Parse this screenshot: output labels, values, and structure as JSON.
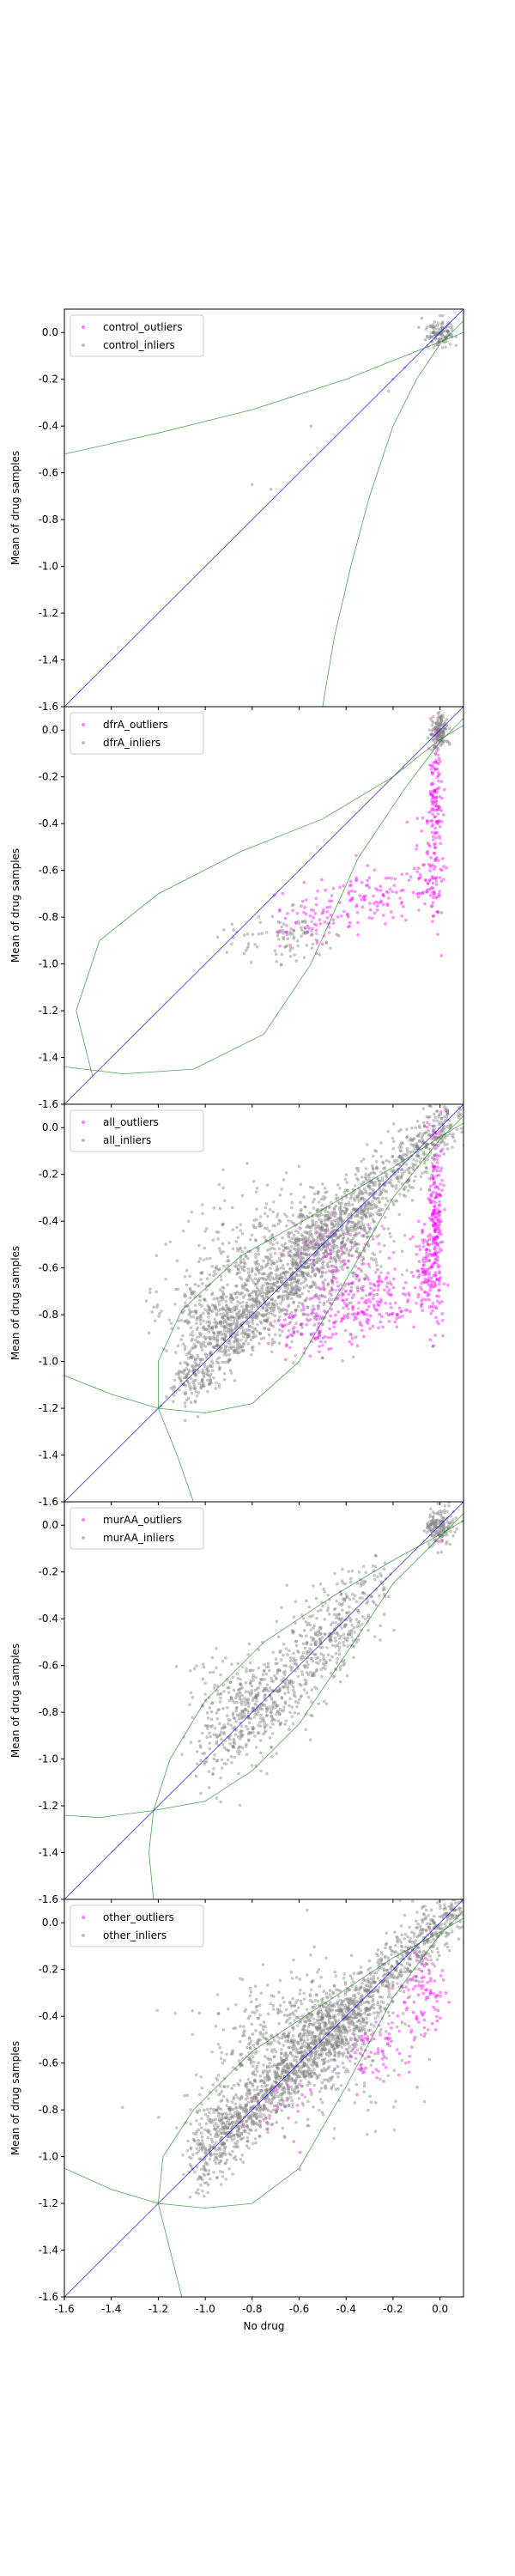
{
  "chart_data": [
    {
      "type": "scatter",
      "xlabel": "",
      "ylabel": "Mean of drug samples",
      "xlim": [
        -1.6,
        0.1
      ],
      "ylim": [
        -1.6,
        0.1
      ],
      "xticks": [
        "-1.6",
        "-1.4",
        "-1.2",
        "-1.0",
        "-0.8",
        "-0.6",
        "-0.4",
        "-0.2",
        "0.0"
      ],
      "yticks": [
        "-1.6",
        "-1.4",
        "-1.2",
        "-1.0",
        "-0.8",
        "-0.6",
        "-0.4",
        "-0.2",
        "0.0"
      ],
      "show_xticklabels": false,
      "legend": {
        "placement": "top-left",
        "entries": [
          "control_outliers",
          "control_inliers"
        ]
      },
      "series": [
        {
          "name": "control_outliers",
          "color": "#ff00ff",
          "points": []
        },
        {
          "name": "control_inliers",
          "color": "#808080",
          "clusters": [
            {
              "cx": 0.0,
              "cy": 0.0,
              "sx": 0.03,
              "sy": 0.03,
              "n": 120
            }
          ],
          "points": [
            [
              -0.55,
              -0.4
            ],
            [
              -0.2,
              -0.2
            ],
            [
              -0.22,
              -0.25
            ],
            [
              -0.15,
              -0.15
            ],
            [
              -0.8,
              -0.65
            ],
            [
              -0.72,
              -0.67
            ]
          ]
        }
      ],
      "reference_line": {
        "color": "#0000ff",
        "from": [
          -1.6,
          -1.6
        ],
        "to": [
          0.1,
          0.1
        ]
      },
      "boundary_curves": {
        "color": "#008000",
        "polylines": [
          [
            [
              -1.6,
              -0.52
            ],
            [
              -1.2,
              -0.43
            ],
            [
              -0.8,
              -0.33
            ],
            [
              -0.4,
              -0.2
            ],
            [
              -0.15,
              -0.1
            ],
            [
              0.0,
              -0.04
            ],
            [
              0.1,
              0.0
            ]
          ],
          [
            [
              -0.5,
              -1.6
            ],
            [
              -0.45,
              -1.3
            ],
            [
              -0.38,
              -1.0
            ],
            [
              -0.3,
              -0.7
            ],
            [
              -0.2,
              -0.4
            ],
            [
              -0.1,
              -0.2
            ],
            [
              0.0,
              -0.05
            ],
            [
              0.1,
              0.05
            ]
          ]
        ]
      }
    },
    {
      "type": "scatter",
      "xlabel": "",
      "ylabel": "Mean of drug samples",
      "xlim": [
        -1.6,
        0.1
      ],
      "ylim": [
        -1.6,
        0.1
      ],
      "xticks": [
        "-1.6",
        "-1.4",
        "-1.2",
        "-1.0",
        "-0.8",
        "-0.6",
        "-0.4",
        "-0.2",
        "0.0"
      ],
      "yticks": [
        "-1.6",
        "-1.4",
        "-1.2",
        "-1.0",
        "-0.8",
        "-0.6",
        "-0.4",
        "-0.2",
        "0.0"
      ],
      "show_xticklabels": false,
      "legend": {
        "placement": "top-left",
        "entries": [
          "dfrA_outliers",
          "dfrA_inliers"
        ]
      },
      "series": [
        {
          "name": "dfrA_outliers",
          "color": "#ff00ff",
          "clusters": [
            {
              "cx": -0.02,
              "cy": -0.35,
              "sx": 0.015,
              "sy": 0.2,
              "n": 160
            },
            {
              "cx": -0.06,
              "cy": -0.62,
              "sx": 0.03,
              "sy": 0.1,
              "n": 60
            },
            {
              "cx": -0.3,
              "cy": -0.72,
              "sx": 0.12,
              "sy": 0.06,
              "n": 110
            },
            {
              "cx": -0.55,
              "cy": -0.82,
              "sx": 0.08,
              "sy": 0.06,
              "n": 60
            }
          ]
        },
        {
          "name": "dfrA_inliers",
          "color": "#808080",
          "clusters": [
            {
              "cx": 0.0,
              "cy": 0.0,
              "sx": 0.02,
              "sy": 0.04,
              "n": 140
            },
            {
              "cx": -0.62,
              "cy": -0.88,
              "sx": 0.08,
              "sy": 0.05,
              "n": 80
            },
            {
              "cx": -0.85,
              "cy": -0.9,
              "sx": 0.06,
              "sy": 0.04,
              "n": 20
            }
          ]
        }
      ],
      "reference_line": {
        "color": "#0000ff",
        "from": [
          -1.6,
          -1.6
        ],
        "to": [
          0.1,
          0.1
        ]
      },
      "boundary_curves": {
        "color": "#008000",
        "polylines": [
          [
            [
              -1.48,
              -1.48
            ],
            [
              -1.55,
              -1.2
            ],
            [
              -1.45,
              -0.9
            ],
            [
              -1.2,
              -0.7
            ],
            [
              -0.85,
              -0.52
            ],
            [
              -0.5,
              -0.38
            ],
            [
              -0.2,
              -0.2
            ],
            [
              0.0,
              -0.04
            ],
            [
              0.1,
              0.02
            ]
          ],
          [
            [
              -1.6,
              -1.44
            ],
            [
              -1.35,
              -1.47
            ],
            [
              -1.05,
              -1.45
            ],
            [
              -0.75,
              -1.3
            ],
            [
              -0.55,
              -1.0
            ],
            [
              -0.35,
              -0.55
            ],
            [
              -0.15,
              -0.25
            ],
            [
              0.0,
              -0.05
            ],
            [
              0.1,
              0.05
            ]
          ]
        ]
      }
    },
    {
      "type": "scatter",
      "xlabel": "",
      "ylabel": "Mean of drug samples",
      "xlim": [
        -1.6,
        0.1
      ],
      "ylim": [
        -1.6,
        0.1
      ],
      "xticks": [
        "-1.6",
        "-1.4",
        "-1.2",
        "-1.0",
        "-0.8",
        "-0.6",
        "-0.4",
        "-0.2",
        "0.0"
      ],
      "yticks": [
        "-1.6",
        "-1.4",
        "-1.2",
        "-1.0",
        "-0.8",
        "-0.6",
        "-0.4",
        "-0.2",
        "0.0"
      ],
      "show_xticklabels": false,
      "legend": {
        "placement": "top-left",
        "entries": [
          "all_outliers",
          "all_inliers"
        ]
      },
      "series": [
        {
          "name": "all_outliers",
          "color": "#ff00ff",
          "clusters": [
            {
              "cx": -0.02,
              "cy": -0.4,
              "sx": 0.015,
              "sy": 0.2,
              "n": 220
            },
            {
              "cx": -0.06,
              "cy": -0.6,
              "sx": 0.03,
              "sy": 0.1,
              "n": 100
            },
            {
              "cx": -0.3,
              "cy": -0.75,
              "sx": 0.12,
              "sy": 0.07,
              "n": 200
            },
            {
              "cx": -0.55,
              "cy": -0.85,
              "sx": 0.09,
              "sy": 0.06,
              "n": 100
            },
            {
              "cx": -0.45,
              "cy": -0.55,
              "sx": 0.1,
              "sy": 0.08,
              "n": 80
            }
          ]
        },
        {
          "name": "all_inliers",
          "color": "#808080",
          "diagonal_band": {
            "from": -1.1,
            "to": 0.08,
            "spread": 0.07,
            "n": 1500
          },
          "clusters": [
            {
              "cx": -0.7,
              "cy": -0.6,
              "sx": 0.2,
              "sy": 0.15,
              "n": 600
            },
            {
              "cx": -0.95,
              "cy": -0.8,
              "sx": 0.1,
              "sy": 0.08,
              "n": 250
            },
            {
              "cx": -0.45,
              "cy": -0.45,
              "sx": 0.12,
              "sy": 0.1,
              "n": 300
            }
          ]
        }
      ],
      "reference_line": {
        "color": "#0000ff",
        "from": [
          -1.6,
          -1.6
        ],
        "to": [
          0.1,
          0.1
        ]
      },
      "boundary_curves": {
        "color": "#008000",
        "polylines": [
          [
            [
              -1.6,
              -1.06
            ],
            [
              -1.4,
              -1.14
            ],
            [
              -1.2,
              -1.2
            ],
            [
              -1.0,
              -1.22
            ],
            [
              -0.8,
              -1.18
            ],
            [
              -0.6,
              -1.0
            ],
            [
              -0.4,
              -0.65
            ],
            [
              -0.2,
              -0.3
            ],
            [
              0.0,
              -0.05
            ],
            [
              0.1,
              0.05
            ]
          ],
          [
            [
              -1.05,
              -1.6
            ],
            [
              -1.12,
              -1.4
            ],
            [
              -1.2,
              -1.2
            ],
            [
              -1.2,
              -1.0
            ],
            [
              -1.1,
              -0.78
            ],
            [
              -0.85,
              -0.55
            ],
            [
              -0.55,
              -0.38
            ],
            [
              -0.2,
              -0.17
            ],
            [
              0.0,
              -0.04
            ],
            [
              0.1,
              0.02
            ]
          ]
        ]
      }
    },
    {
      "type": "scatter",
      "xlabel": "",
      "ylabel": "Mean of drug samples",
      "xlim": [
        -1.6,
        0.1
      ],
      "ylim": [
        -1.6,
        0.1
      ],
      "xticks": [
        "-1.6",
        "-1.4",
        "-1.2",
        "-1.0",
        "-0.8",
        "-0.6",
        "-0.4",
        "-0.2",
        "0.0"
      ],
      "yticks": [
        "-1.6",
        "-1.4",
        "-1.2",
        "-1.0",
        "-0.8",
        "-0.6",
        "-0.4",
        "-0.2",
        "0.0"
      ],
      "show_xticklabels": false,
      "legend": {
        "placement": "top-left",
        "entries": [
          "murAA_outliers",
          "murAA_inliers"
        ]
      },
      "series": [
        {
          "name": "murAA_outliers",
          "color": "#ff00ff",
          "clusters": [
            {
              "cx": 0.0,
              "cy": -0.05,
              "sx": 0.01,
              "sy": 0.02,
              "n": 5
            }
          ]
        },
        {
          "name": "murAA_inliers",
          "color": "#808080",
          "diagonal_band": {
            "from": -1.0,
            "to": -0.25,
            "spread": 0.09,
            "n": 550
          },
          "clusters": [
            {
              "cx": 0.0,
              "cy": 0.0,
              "sx": 0.03,
              "sy": 0.04,
              "n": 160
            },
            {
              "cx": -0.8,
              "cy": -0.75,
              "sx": 0.12,
              "sy": 0.1,
              "n": 250
            },
            {
              "cx": -0.5,
              "cy": -0.5,
              "sx": 0.1,
              "sy": 0.1,
              "n": 100
            }
          ]
        }
      ],
      "reference_line": {
        "color": "#0000ff",
        "from": [
          -1.6,
          -1.6
        ],
        "to": [
          0.1,
          0.1
        ]
      },
      "boundary_curves": {
        "color": "#008000",
        "polylines": [
          [
            [
              -1.6,
              -1.24
            ],
            [
              -1.45,
              -1.25
            ],
            [
              -1.22,
              -1.22
            ],
            [
              -1.0,
              -1.18
            ],
            [
              -0.8,
              -1.05
            ],
            [
              -0.6,
              -0.85
            ],
            [
              -0.4,
              -0.55
            ],
            [
              -0.2,
              -0.25
            ],
            [
              0.0,
              -0.05
            ],
            [
              0.1,
              0.05
            ]
          ],
          [
            [
              -1.22,
              -1.6
            ],
            [
              -1.24,
              -1.4
            ],
            [
              -1.22,
              -1.22
            ],
            [
              -1.15,
              -1.0
            ],
            [
              -1.0,
              -0.75
            ],
            [
              -0.75,
              -0.5
            ],
            [
              -0.45,
              -0.3
            ],
            [
              -0.2,
              -0.15
            ],
            [
              0.0,
              -0.04
            ],
            [
              0.1,
              0.02
            ]
          ]
        ]
      }
    },
    {
      "type": "scatter",
      "xlabel": "No drug",
      "ylabel": "Mean of drug samples",
      "xlim": [
        -1.6,
        0.1
      ],
      "ylim": [
        -1.6,
        0.1
      ],
      "xticks": [
        "-1.6",
        "-1.4",
        "-1.2",
        "-1.0",
        "-0.8",
        "-0.6",
        "-0.4",
        "-0.2",
        "0.0"
      ],
      "yticks": [
        "-1.6",
        "-1.4",
        "-1.2",
        "-1.0",
        "-0.8",
        "-0.6",
        "-0.4",
        "-0.2",
        "0.0"
      ],
      "show_xticklabels": true,
      "legend": {
        "placement": "top-left",
        "entries": [
          "other_outliers",
          "other_inliers"
        ]
      },
      "series": [
        {
          "name": "other_outliers",
          "color": "#ff00ff",
          "clusters": [
            {
              "cx": -0.08,
              "cy": -0.3,
              "sx": 0.05,
              "sy": 0.1,
              "n": 100
            },
            {
              "cx": -0.3,
              "cy": -0.55,
              "sx": 0.08,
              "sy": 0.08,
              "n": 70
            },
            {
              "cx": -0.7,
              "cy": -0.8,
              "sx": 0.1,
              "sy": 0.07,
              "n": 30
            }
          ]
        },
        {
          "name": "other_inliers",
          "color": "#808080",
          "diagonal_band": {
            "from": -1.05,
            "to": 0.08,
            "spread": 0.07,
            "n": 1500
          },
          "clusters": [
            {
              "cx": -0.65,
              "cy": -0.58,
              "sx": 0.18,
              "sy": 0.14,
              "n": 550
            },
            {
              "cx": -0.45,
              "cy": -0.42,
              "sx": 0.12,
              "sy": 0.1,
              "n": 350
            },
            {
              "cx": -0.92,
              "cy": -0.82,
              "sx": 0.08,
              "sy": 0.07,
              "n": 100
            }
          ]
        }
      ],
      "reference_line": {
        "color": "#0000ff",
        "from": [
          -1.6,
          -1.6
        ],
        "to": [
          0.1,
          0.1
        ]
      },
      "boundary_curves": {
        "color": "#008000",
        "polylines": [
          [
            [
              -1.6,
              -1.05
            ],
            [
              -1.4,
              -1.14
            ],
            [
              -1.2,
              -1.2
            ],
            [
              -1.0,
              -1.22
            ],
            [
              -0.8,
              -1.2
            ],
            [
              -0.6,
              -1.05
            ],
            [
              -0.4,
              -0.7
            ],
            [
              -0.2,
              -0.32
            ],
            [
              0.0,
              -0.05
            ],
            [
              0.1,
              0.05
            ]
          ],
          [
            [
              -1.1,
              -1.6
            ],
            [
              -1.15,
              -1.4
            ],
            [
              -1.2,
              -1.2
            ],
            [
              -1.18,
              -1.0
            ],
            [
              -1.05,
              -0.8
            ],
            [
              -0.8,
              -0.55
            ],
            [
              -0.5,
              -0.35
            ],
            [
              -0.2,
              -0.15
            ],
            [
              0.0,
              -0.04
            ],
            [
              0.1,
              0.02
            ]
          ]
        ]
      }
    }
  ]
}
